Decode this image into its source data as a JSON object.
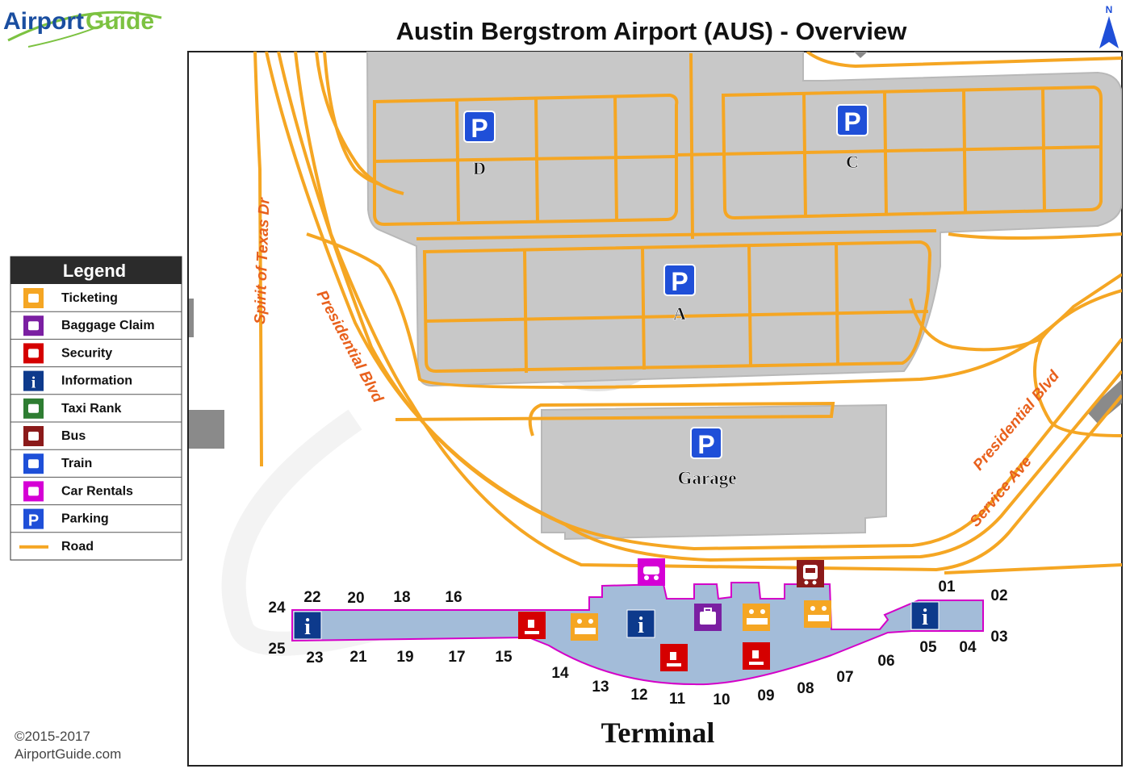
{
  "logo": {
    "brand_left": "Airport",
    "brand_right": "Guide"
  },
  "title": "Austin Bergstrom Airport (AUS) - Overview",
  "north_label": "N",
  "legend": {
    "title": "Legend",
    "items": [
      {
        "label": "Ticketing",
        "icon": "ticketing-icon",
        "color": "#f5a623"
      },
      {
        "label": "Baggage Claim",
        "icon": "baggage-claim-icon",
        "color": "#7b1fa2"
      },
      {
        "label": "Security",
        "icon": "security-icon",
        "color": "#d50000"
      },
      {
        "label": "Information",
        "icon": "information-icon",
        "color": "#0d3a8c"
      },
      {
        "label": "Taxi Rank",
        "icon": "taxi-icon",
        "color": "#2e7d32"
      },
      {
        "label": "Bus",
        "icon": "bus-icon",
        "color": "#8b1a1a"
      },
      {
        "label": "Train",
        "icon": "train-icon",
        "color": "#1e4fd8"
      },
      {
        "label": "Car Rentals",
        "icon": "car-rental-icon",
        "color": "#d500d5"
      },
      {
        "label": "Parking",
        "icon": "parking-icon",
        "color": "#1f4fd8"
      },
      {
        "label": "Road",
        "icon": "road-line-icon",
        "color": "#f5a623"
      }
    ]
  },
  "roads": {
    "spirit_of_texas": "Spirit of Texas Dr",
    "presidential_left": "Presidential Blvd",
    "presidential_right": "Presidential Blvd",
    "service_ave": "Service Ave"
  },
  "parking": {
    "lot_d": "D",
    "lot_c": "C",
    "lot_a": "A",
    "garage": "Garage",
    "parking_letter": "P"
  },
  "terminal_label": "Terminal",
  "info_letter": "i",
  "gates": [
    "01",
    "02",
    "03",
    "04",
    "05",
    "06",
    "07",
    "08",
    "09",
    "10",
    "11",
    "12",
    "13",
    "14",
    "15",
    "16",
    "17",
    "18",
    "19",
    "20",
    "21",
    "22",
    "23",
    "24",
    "25"
  ],
  "copyright": {
    "years": "©2015-2017",
    "site": "AirportGuide.com"
  },
  "colors": {
    "road": "#f5a623",
    "road_label": "#e8601c",
    "parking_lot": "#c8c8c8",
    "terminal": "#a3bcd9",
    "terminal_border": "#d400c8"
  }
}
